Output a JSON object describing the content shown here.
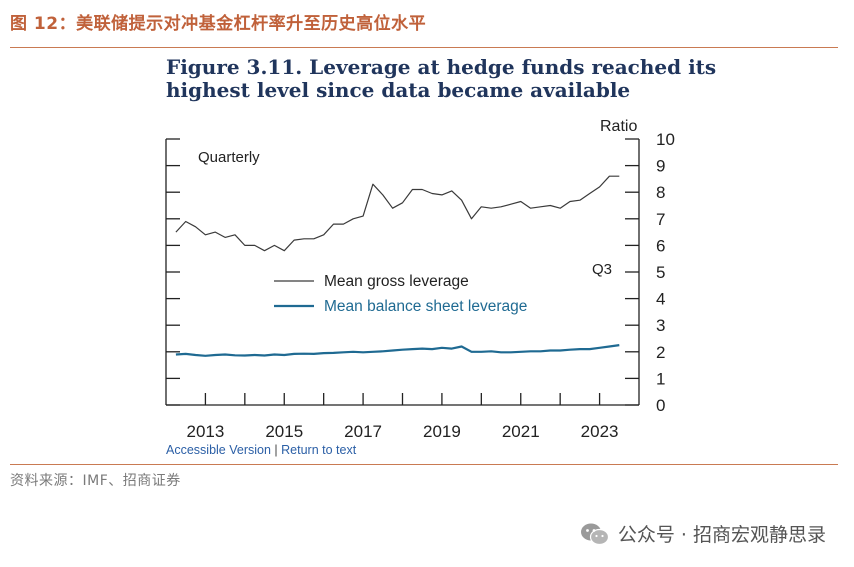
{
  "header": {
    "title": "图 12：美联储提示对冲基金杠杆率升至历史高位水平"
  },
  "figure": {
    "title_line1": "Figure 3.11. Leverage at hedge funds reached its",
    "title_line2": "highest level since data became available"
  },
  "links": {
    "accessible": "Accessible Version",
    "separator": "|",
    "return": "Return to text"
  },
  "source": "资料来源：IMF、招商证券",
  "watermark": "公众号 · 招商宏观静思录",
  "chart_data": {
    "type": "line",
    "frequency_label": "Quarterly",
    "ylabel": "Ratio",
    "annotation": "Q3",
    "ylim": [
      0,
      10
    ],
    "yticks": [
      0,
      1,
      2,
      3,
      4,
      5,
      6,
      7,
      8,
      9,
      10
    ],
    "xlim": [
      2012.0,
      2024.0
    ],
    "xticks": [
      2013,
      2015,
      2017,
      2019,
      2021,
      2023
    ],
    "legend": [
      "Mean gross leverage",
      "Mean balance sheet leverage"
    ],
    "colors": {
      "gross": "#3a3a3a",
      "balance": "#1f6a92",
      "axis": "#222222"
    },
    "series": [
      {
        "name": "Mean gross leverage",
        "x": [
          2012.25,
          2012.5,
          2012.75,
          2013.0,
          2013.25,
          2013.5,
          2013.75,
          2014.0,
          2014.25,
          2014.5,
          2014.75,
          2015.0,
          2015.25,
          2015.5,
          2015.75,
          2016.0,
          2016.25,
          2016.5,
          2016.75,
          2017.0,
          2017.25,
          2017.5,
          2017.75,
          2018.0,
          2018.25,
          2018.5,
          2018.75,
          2019.0,
          2019.25,
          2019.5,
          2019.75,
          2020.0,
          2020.25,
          2020.5,
          2020.75,
          2021.0,
          2021.25,
          2021.5,
          2021.75,
          2022.0,
          2022.25,
          2022.5,
          2022.75,
          2023.0,
          2023.25,
          2023.5
        ],
        "values": [
          6.5,
          6.9,
          6.7,
          6.4,
          6.5,
          6.3,
          6.4,
          6.0,
          6.0,
          5.8,
          6.0,
          5.8,
          6.2,
          6.25,
          6.25,
          6.4,
          6.8,
          6.8,
          7.0,
          7.1,
          8.3,
          7.9,
          7.4,
          7.6,
          8.1,
          8.1,
          7.95,
          7.9,
          8.05,
          7.7,
          7.0,
          7.45,
          7.4,
          7.45,
          7.55,
          7.65,
          7.4,
          7.45,
          7.5,
          7.4,
          7.65,
          7.7,
          7.95,
          8.2,
          8.6,
          8.6
        ]
      },
      {
        "name": "Mean balance sheet leverage",
        "x": [
          2012.25,
          2012.5,
          2012.75,
          2013.0,
          2013.25,
          2013.5,
          2013.75,
          2014.0,
          2014.25,
          2014.5,
          2014.75,
          2015.0,
          2015.25,
          2015.5,
          2015.75,
          2016.0,
          2016.25,
          2016.5,
          2016.75,
          2017.0,
          2017.25,
          2017.5,
          2017.75,
          2018.0,
          2018.25,
          2018.5,
          2018.75,
          2019.0,
          2019.25,
          2019.5,
          2019.75,
          2020.0,
          2020.25,
          2020.5,
          2020.75,
          2021.0,
          2021.25,
          2021.5,
          2021.75,
          2022.0,
          2022.25,
          2022.5,
          2022.75,
          2023.0,
          2023.25,
          2023.5
        ],
        "values": [
          1.9,
          1.92,
          1.88,
          1.85,
          1.88,
          1.9,
          1.87,
          1.86,
          1.88,
          1.86,
          1.9,
          1.88,
          1.92,
          1.93,
          1.92,
          1.95,
          1.96,
          1.98,
          2.0,
          1.98,
          2.0,
          2.02,
          2.05,
          2.08,
          2.1,
          2.12,
          2.1,
          2.15,
          2.12,
          2.2,
          2.0,
          2.0,
          2.02,
          1.98,
          1.98,
          2.0,
          2.02,
          2.02,
          2.05,
          2.05,
          2.08,
          2.1,
          2.1,
          2.15,
          2.2,
          2.25
        ]
      }
    ]
  }
}
